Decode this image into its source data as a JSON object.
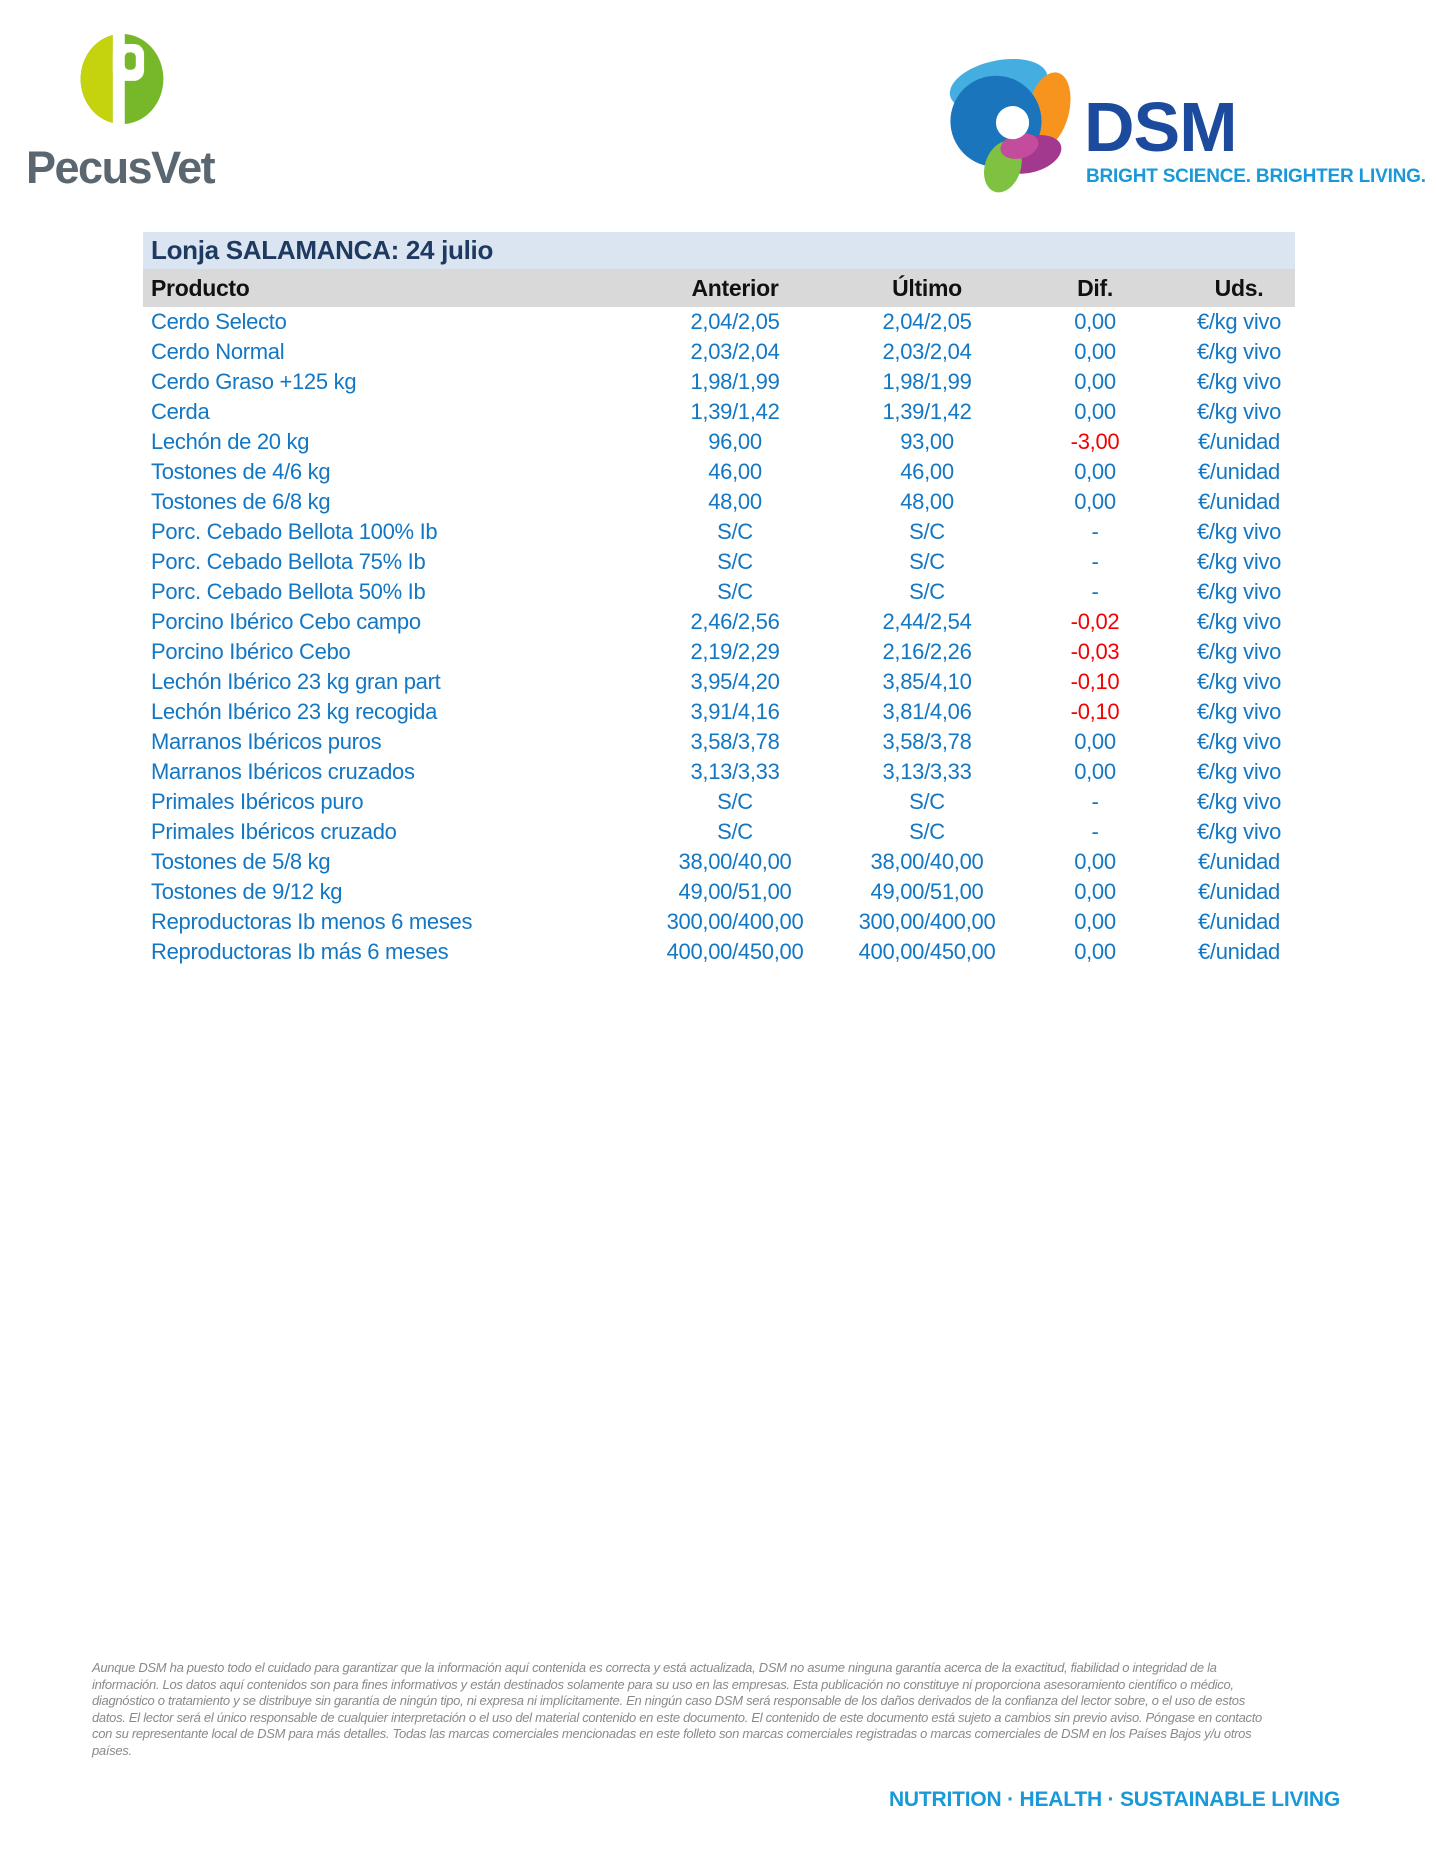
{
  "branding": {
    "pecusvet": {
      "name": "PecusVet",
      "monogram": "P",
      "colors": {
        "left_half": "#C5D30F",
        "right_half": "#76B82A",
        "wordmark": "#5B6770"
      }
    },
    "dsm": {
      "name": "DSM",
      "tagline": "BRIGHT SCIENCE. BRIGHTER LIVING.",
      "colors": {
        "wordmark": "#1C4A9C",
        "tagline": "#1999D8"
      }
    }
  },
  "colors": {
    "value_blue": "#1377C4",
    "negative_red": "#F40000",
    "title_navy": "#1F3A60",
    "title_bar_bg": "#DBE5F1",
    "header_row_bg": "#D9D9D9"
  },
  "table": {
    "title": "Lonja SALAMANCA: 24 julio",
    "columns": [
      "Producto",
      "Anterior",
      "Último",
      "Dif.",
      "Uds."
    ],
    "rows": [
      {
        "producto": "Cerdo Selecto",
        "anterior": "2,04/2,05",
        "ultimo": "2,04/2,05",
        "dif": "0,00",
        "negative": false,
        "uds": "€/kg vivo"
      },
      {
        "producto": "Cerdo Normal",
        "anterior": "2,03/2,04",
        "ultimo": "2,03/2,04",
        "dif": "0,00",
        "negative": false,
        "uds": "€/kg vivo"
      },
      {
        "producto": "Cerdo Graso +125 kg",
        "anterior": "1,98/1,99",
        "ultimo": "1,98/1,99",
        "dif": "0,00",
        "negative": false,
        "uds": "€/kg vivo"
      },
      {
        "producto": "Cerda",
        "anterior": "1,39/1,42",
        "ultimo": "1,39/1,42",
        "dif": "0,00",
        "negative": false,
        "uds": "€/kg vivo"
      },
      {
        "producto": "Lechón de 20 kg",
        "anterior": "96,00",
        "ultimo": "93,00",
        "dif": "-3,00",
        "negative": true,
        "uds": "€/unidad"
      },
      {
        "producto": "Tostones de 4/6 kg",
        "anterior": "46,00",
        "ultimo": "46,00",
        "dif": "0,00",
        "negative": false,
        "uds": "€/unidad"
      },
      {
        "producto": "Tostones de 6/8 kg",
        "anterior": "48,00",
        "ultimo": "48,00",
        "dif": "0,00",
        "negative": false,
        "uds": "€/unidad"
      },
      {
        "producto": "Porc. Cebado Bellota 100% Ib",
        "anterior": "S/C",
        "ultimo": "S/C",
        "dif": "-",
        "negative": false,
        "uds": "€/kg vivo"
      },
      {
        "producto": "Porc. Cebado Bellota 75% Ib",
        "anterior": "S/C",
        "ultimo": "S/C",
        "dif": "-",
        "negative": false,
        "uds": "€/kg vivo"
      },
      {
        "producto": "Porc. Cebado Bellota 50% Ib",
        "anterior": "S/C",
        "ultimo": "S/C",
        "dif": "-",
        "negative": false,
        "uds": "€/kg vivo"
      },
      {
        "producto": "Porcino Ibérico Cebo campo",
        "anterior": "2,46/2,56",
        "ultimo": "2,44/2,54",
        "dif": "-0,02",
        "negative": true,
        "uds": "€/kg vivo"
      },
      {
        "producto": "Porcino Ibérico Cebo",
        "anterior": "2,19/2,29",
        "ultimo": "2,16/2,26",
        "dif": "-0,03",
        "negative": true,
        "uds": "€/kg vivo"
      },
      {
        "producto": "Lechón Ibérico 23 kg gran part",
        "anterior": "3,95/4,20",
        "ultimo": "3,85/4,10",
        "dif": "-0,10",
        "negative": true,
        "uds": "€/kg vivo"
      },
      {
        "producto": "Lechón Ibérico 23 kg recogida",
        "anterior": "3,91/4,16",
        "ultimo": "3,81/4,06",
        "dif": "-0,10",
        "negative": true,
        "uds": "€/kg vivo"
      },
      {
        "producto": "Marranos Ibéricos puros",
        "anterior": "3,58/3,78",
        "ultimo": "3,58/3,78",
        "dif": "0,00",
        "negative": false,
        "uds": "€/kg vivo"
      },
      {
        "producto": "Marranos Ibéricos cruzados",
        "anterior": "3,13/3,33",
        "ultimo": "3,13/3,33",
        "dif": "0,00",
        "negative": false,
        "uds": "€/kg vivo"
      },
      {
        "producto": "Primales Ibéricos puro",
        "anterior": "S/C",
        "ultimo": "S/C",
        "dif": "-",
        "negative": false,
        "uds": "€/kg vivo"
      },
      {
        "producto": "Primales Ibéricos cruzado",
        "anterior": "S/C",
        "ultimo": "S/C",
        "dif": "-",
        "negative": false,
        "uds": "€/kg vivo"
      },
      {
        "producto": "Tostones de 5/8 kg",
        "anterior": "38,00/40,00",
        "ultimo": "38,00/40,00",
        "dif": "0,00",
        "negative": false,
        "uds": "€/unidad"
      },
      {
        "producto": "Tostones de 9/12 kg",
        "anterior": "49,00/51,00",
        "ultimo": "49,00/51,00",
        "dif": "0,00",
        "negative": false,
        "uds": "€/unidad"
      },
      {
        "producto": "Reproductoras Ib menos 6 meses",
        "anterior": "300,00/400,00",
        "ultimo": "300,00/400,00",
        "dif": "0,00",
        "negative": false,
        "uds": "€/unidad"
      },
      {
        "producto": "Reproductoras Ib más 6 meses",
        "anterior": "400,00/450,00",
        "ultimo": "400,00/450,00",
        "dif": "0,00",
        "negative": false,
        "uds": "€/unidad"
      }
    ]
  },
  "disclaimer": {
    "lines": [
      "Aunque DSM ha puesto todo el cuidado para garantizar que la información aquí contenida es correcta y está actualizada, DSM no asume ninguna garantía acerca de la exactitud, fiabilidad o integridad de la",
      "información. Los datos aquí contenidos son para fines informativos y están destinados solamente para su uso en las empresas. Esta publicación no constituye ni proporciona asesoramiento científico o médico,",
      "diagnóstico o tratamiento y se distribuye sin garantía de ningún tipo, ni expresa ni implícitamente. En ningún caso DSM será responsable de los daños derivados de la confianza del lector sobre, o el uso de estos",
      "datos. El lector será el único responsable de cualquier interpretación o el uso del material contenido en este documento. El contenido de este documento está sujeto a cambios sin previo aviso. Póngase en contacto",
      "con su representante local de DSM para más detalles. Todas las marcas comerciales mencionadas en este folleto son marcas comerciales registradas o marcas comerciales de DSM en los Países Bajos y/u otros",
      "países."
    ]
  },
  "footer": {
    "tagline": "NUTRITION  ·  HEALTH  ·  SUSTAINABLE LIVING"
  }
}
